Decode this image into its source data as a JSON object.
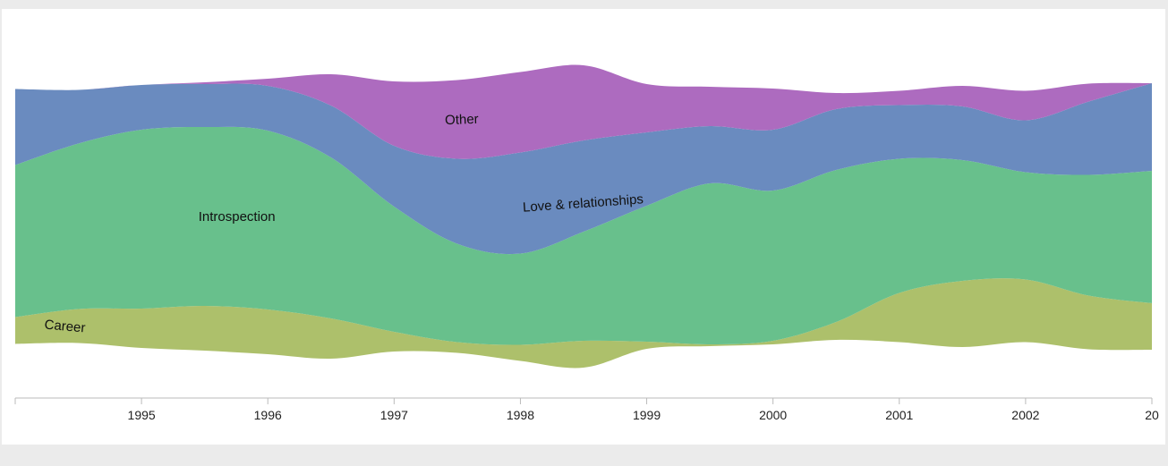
{
  "chart_data": {
    "type": "area",
    "subtype": "streamgraph",
    "title": "",
    "xlabel": "",
    "ylabel": "",
    "x": [
      1994,
      1994.5,
      1995,
      1995.5,
      1996,
      1996.5,
      1997,
      1997.5,
      1998,
      1998.5,
      1999,
      1999.5,
      2000,
      2000.5,
      2001,
      2001.5,
      2002,
      2002.5,
      2003
    ],
    "xlim": [
      1994,
      2003
    ],
    "tick_labels": [
      "1995",
      "1996",
      "1997",
      "1998",
      "1999",
      "2000",
      "2001",
      "2002",
      "20"
    ],
    "baseline_shape": "centered (wiggle)",
    "grid": false,
    "legend": "inline labels",
    "series": [
      {
        "name": "Career",
        "color": "#adc06b",
        "values": [
          30,
          38,
          44,
          50,
          50,
          45,
          22,
          12,
          18,
          30,
          8,
          2,
          4,
          20,
          55,
          74,
          70,
          60,
          52
        ]
      },
      {
        "name": "Introspection",
        "color": "#68c08c",
        "values": [
          170,
          185,
          200,
          200,
          200,
          180,
          140,
          110,
          102,
          122,
          152,
          180,
          168,
          170,
          150,
          135,
          120,
          135,
          148
        ]
      },
      {
        "name": "Love & relationships",
        "color": "#6a8bbf",
        "values": [
          85,
          60,
          50,
          48,
          50,
          58,
          68,
          95,
          113,
          102,
          82,
          64,
          68,
          68,
          60,
          60,
          58,
          82,
          98
        ]
      },
      {
        "name": "Other",
        "color": "#ad6bbf",
        "values": [
          0,
          0,
          0,
          2,
          8,
          35,
          72,
          88,
          90,
          84,
          54,
          44,
          46,
          18,
          16,
          23,
          33,
          20,
          0
        ]
      }
    ]
  }
}
